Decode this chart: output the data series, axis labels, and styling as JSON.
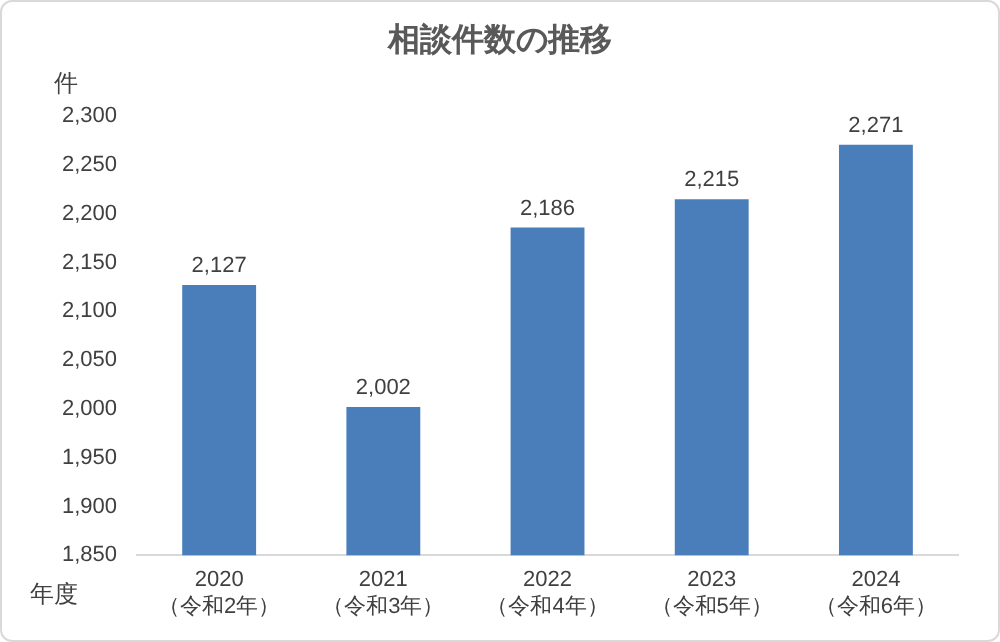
{
  "chart_data": {
    "type": "bar",
    "title": "相談件数の推移",
    "ylabel": "件",
    "xlabel": "年度",
    "categories": [
      "2020\n（令和2年）",
      "2021\n（令和3年）",
      "2022\n（令和4年）",
      "2023\n（令和5年）",
      "2024\n（令和6年）"
    ],
    "values": [
      2127,
      2002,
      2186,
      2215,
      2271
    ],
    "value_labels": [
      "2,127",
      "2,002",
      "2,186",
      "2,215",
      "2,271"
    ],
    "color": "#4a7ebb",
    "ylim": [
      1850,
      2300
    ],
    "yticks": [
      {
        "value": 1850,
        "label": "1,850"
      },
      {
        "value": 1900,
        "label": "1,900"
      },
      {
        "value": 1950,
        "label": "1,950"
      },
      {
        "value": 2000,
        "label": "2,000"
      },
      {
        "value": 2050,
        "label": "2,050"
      },
      {
        "value": 2100,
        "label": "2,100"
      },
      {
        "value": 2150,
        "label": "2,150"
      },
      {
        "value": 2200,
        "label": "2,200"
      },
      {
        "value": 2250,
        "label": "2,250"
      },
      {
        "value": 2300,
        "label": "2,300"
      }
    ],
    "grid": false,
    "legend": false
  }
}
